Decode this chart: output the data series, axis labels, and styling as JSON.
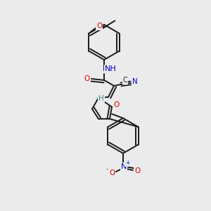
{
  "bg_color": "#ebebeb",
  "bond_color": "#1a1a1a",
  "bond_width": 1.4,
  "atom_colors": {
    "O": "#dd0000",
    "N": "#0000cc",
    "C": "#1a1a1a",
    "H": "#2a9090"
  },
  "font_size": 7.5
}
